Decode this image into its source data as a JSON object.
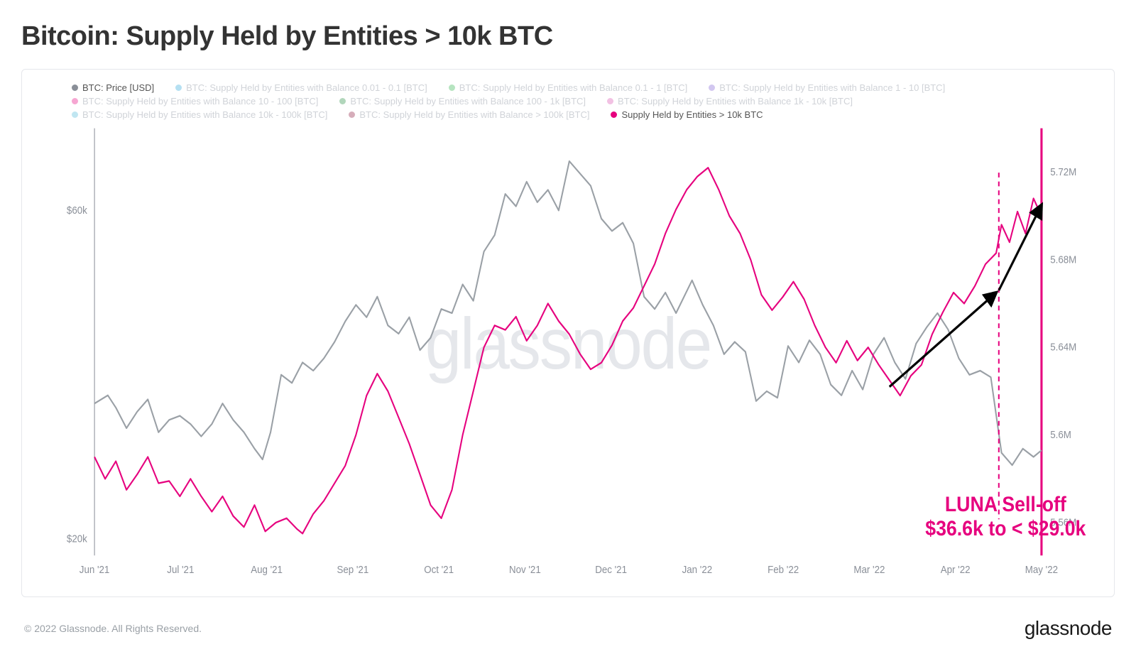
{
  "title": "Bitcoin: Supply Held by Entities > 10k BTC",
  "copyright": "© 2022 Glassnode. All Rights Reserved.",
  "brand": "glassnode",
  "watermark": "glassnode",
  "chart": {
    "type": "line-dual-axis",
    "background_color": "#ffffff",
    "grid_color": "#e5e7eb",
    "x": {
      "labels": [
        "Jun '21",
        "Jul '21",
        "Aug '21",
        "Sep '21",
        "Oct '21",
        "Nov '21",
        "Dec '21",
        "Jan '22",
        "Feb '22",
        "Mar '22",
        "Apr '22",
        "May '22"
      ],
      "range_days": 355
    },
    "y_left": {
      "label_color": "#8a8f98",
      "ticks": [
        {
          "v": 20000,
          "label": "$20k"
        },
        {
          "v": 60000,
          "label": "$60k"
        }
      ],
      "min": 18000,
      "max": 70000
    },
    "y_right": {
      "label_color": "#8a8f98",
      "ticks": [
        {
          "v": 5560000,
          "label": "5.56M"
        },
        {
          "v": 5600000,
          "label": "5.6M"
        },
        {
          "v": 5640000,
          "label": "5.64M"
        },
        {
          "v": 5680000,
          "label": "5.68M"
        },
        {
          "v": 5720000,
          "label": "5.72M"
        }
      ],
      "min": 5545000,
      "max": 5740000
    },
    "legend": [
      {
        "label": "BTC: Price [USD]",
        "color": "#8a8f98",
        "muted": false
      },
      {
        "label": "BTC: Supply Held by Entities with Balance 0.01 - 0.1 [BTC]",
        "color": "#2aa7d9",
        "muted": true
      },
      {
        "label": "BTC: Supply Held by Entities with Balance 0.1 - 1 [BTC]",
        "color": "#2fb34a",
        "muted": true
      },
      {
        "label": "BTC: Supply Held by Entities with Balance 1 - 10 [BTC]",
        "color": "#7d5fd3",
        "muted": true
      },
      {
        "label": "BTC: Supply Held by Entities with Balance 10 - 100 [BTC]",
        "color": "#e6007e",
        "muted": true
      },
      {
        "label": "BTC: Supply Held by Entities with Balance 100 - 1k [BTC]",
        "color": "#1f8a3b",
        "muted": true
      },
      {
        "label": "BTC: Supply Held by Entities with Balance 1k - 10k [BTC]",
        "color": "#d94db0",
        "muted": true
      },
      {
        "label": "BTC: Supply Held by Entities with Balance 10k - 100k [BTC]",
        "color": "#4bb7d8",
        "muted": true
      },
      {
        "label": "BTC: Supply Held by Entities with Balance > 100k [BTC]",
        "color": "#8a1538",
        "muted": true
      },
      {
        "label": "Supply Held by Entities > 10k BTC",
        "color": "#e6007e",
        "muted": false
      }
    ],
    "series_price": {
      "color": "#9aa0a6",
      "width": 2,
      "data": [
        [
          0,
          36500
        ],
        [
          5,
          37500
        ],
        [
          8,
          36000
        ],
        [
          12,
          33500
        ],
        [
          16,
          35500
        ],
        [
          20,
          37000
        ],
        [
          24,
          33000
        ],
        [
          28,
          34500
        ],
        [
          32,
          35000
        ],
        [
          36,
          34000
        ],
        [
          40,
          32500
        ],
        [
          44,
          34000
        ],
        [
          48,
          36500
        ],
        [
          52,
          34500
        ],
        [
          56,
          33000
        ],
        [
          60,
          31000
        ],
        [
          63,
          29700
        ],
        [
          66,
          33000
        ],
        [
          70,
          40000
        ],
        [
          74,
          39000
        ],
        [
          78,
          41500
        ],
        [
          82,
          40500
        ],
        [
          86,
          42000
        ],
        [
          90,
          44000
        ],
        [
          94,
          46500
        ],
        [
          98,
          48500
        ],
        [
          102,
          47000
        ],
        [
          106,
          49500
        ],
        [
          110,
          46000
        ],
        [
          114,
          45000
        ],
        [
          118,
          47000
        ],
        [
          122,
          43000
        ],
        [
          126,
          44500
        ],
        [
          130,
          48000
        ],
        [
          134,
          47500
        ],
        [
          138,
          51000
        ],
        [
          142,
          49000
        ],
        [
          146,
          55000
        ],
        [
          150,
          57000
        ],
        [
          154,
          62000
        ],
        [
          158,
          60500
        ],
        [
          162,
          63500
        ],
        [
          166,
          61000
        ],
        [
          170,
          62500
        ],
        [
          174,
          60000
        ],
        [
          178,
          66000
        ],
        [
          182,
          64500
        ],
        [
          186,
          63000
        ],
        [
          190,
          59000
        ],
        [
          194,
          57500
        ],
        [
          198,
          58500
        ],
        [
          202,
          56000
        ],
        [
          206,
          49500
        ],
        [
          210,
          48000
        ],
        [
          214,
          50000
        ],
        [
          218,
          47500
        ],
        [
          224,
          51500
        ],
        [
          228,
          48500
        ],
        [
          232,
          46000
        ],
        [
          236,
          42500
        ],
        [
          240,
          44000
        ],
        [
          244,
          42800
        ],
        [
          248,
          36800
        ],
        [
          252,
          38000
        ],
        [
          256,
          37200
        ],
        [
          260,
          43500
        ],
        [
          264,
          41500
        ],
        [
          268,
          44200
        ],
        [
          272,
          42500
        ],
        [
          276,
          38800
        ],
        [
          280,
          37500
        ],
        [
          284,
          40500
        ],
        [
          288,
          38200
        ],
        [
          292,
          42500
        ],
        [
          296,
          44500
        ],
        [
          300,
          41500
        ],
        [
          304,
          39500
        ],
        [
          308,
          43800
        ],
        [
          312,
          45800
        ],
        [
          316,
          47500
        ],
        [
          320,
          45500
        ],
        [
          324,
          42000
        ],
        [
          328,
          40000
        ],
        [
          332,
          40500
        ],
        [
          336,
          39700
        ],
        [
          340,
          30500
        ],
        [
          344,
          29000
        ],
        [
          348,
          31000
        ],
        [
          352,
          30000
        ],
        [
          355,
          30800
        ]
      ]
    },
    "series_supply": {
      "color": "#e6007e",
      "width": 2,
      "data": [
        [
          0,
          5590000
        ],
        [
          4,
          5580000
        ],
        [
          8,
          5588000
        ],
        [
          12,
          5575000
        ],
        [
          16,
          5582000
        ],
        [
          20,
          5590000
        ],
        [
          24,
          5578000
        ],
        [
          28,
          5579000
        ],
        [
          32,
          5572000
        ],
        [
          36,
          5580000
        ],
        [
          40,
          5572000
        ],
        [
          44,
          5565000
        ],
        [
          48,
          5572000
        ],
        [
          52,
          5563000
        ],
        [
          56,
          5558000
        ],
        [
          60,
          5568000
        ],
        [
          64,
          5556000
        ],
        [
          68,
          5560000
        ],
        [
          72,
          5562000
        ],
        [
          76,
          5557000
        ],
        [
          78,
          5555000
        ],
        [
          82,
          5564000
        ],
        [
          86,
          5570000
        ],
        [
          90,
          5578000
        ],
        [
          94,
          5586000
        ],
        [
          98,
          5600000
        ],
        [
          102,
          5618000
        ],
        [
          106,
          5628000
        ],
        [
          110,
          5620000
        ],
        [
          114,
          5608000
        ],
        [
          118,
          5596000
        ],
        [
          122,
          5582000
        ],
        [
          126,
          5568000
        ],
        [
          130,
          5562000
        ],
        [
          134,
          5575000
        ],
        [
          138,
          5600000
        ],
        [
          142,
          5620000
        ],
        [
          146,
          5640000
        ],
        [
          150,
          5650000
        ],
        [
          154,
          5648000
        ],
        [
          158,
          5654000
        ],
        [
          162,
          5643000
        ],
        [
          166,
          5650000
        ],
        [
          170,
          5660000
        ],
        [
          174,
          5652000
        ],
        [
          178,
          5646000
        ],
        [
          182,
          5637000
        ],
        [
          186,
          5630000
        ],
        [
          190,
          5633000
        ],
        [
          194,
          5641000
        ],
        [
          198,
          5652000
        ],
        [
          202,
          5658000
        ],
        [
          206,
          5668000
        ],
        [
          210,
          5678000
        ],
        [
          214,
          5692000
        ],
        [
          218,
          5703000
        ],
        [
          222,
          5712000
        ],
        [
          226,
          5718000
        ],
        [
          230,
          5722000
        ],
        [
          234,
          5712000
        ],
        [
          238,
          5700000
        ],
        [
          242,
          5692000
        ],
        [
          246,
          5680000
        ],
        [
          250,
          5664000
        ],
        [
          254,
          5657000
        ],
        [
          258,
          5663000
        ],
        [
          262,
          5670000
        ],
        [
          266,
          5662000
        ],
        [
          270,
          5650000
        ],
        [
          274,
          5640000
        ],
        [
          278,
          5633000
        ],
        [
          282,
          5643000
        ],
        [
          286,
          5634000
        ],
        [
          290,
          5640000
        ],
        [
          294,
          5632000
        ],
        [
          298,
          5625000
        ],
        [
          302,
          5618000
        ],
        [
          306,
          5627000
        ],
        [
          310,
          5632000
        ],
        [
          314,
          5646000
        ],
        [
          318,
          5656000
        ],
        [
          322,
          5665000
        ],
        [
          326,
          5660000
        ],
        [
          330,
          5668000
        ],
        [
          334,
          5678000
        ],
        [
          338,
          5683000
        ],
        [
          340,
          5696000
        ],
        [
          343,
          5688000
        ],
        [
          346,
          5702000
        ],
        [
          349,
          5692000
        ],
        [
          352,
          5708000
        ],
        [
          355,
          5700000
        ]
      ]
    },
    "annotation": {
      "vline_day": 339,
      "vline_color": "#e6007e",
      "text1": "LUNA Sell-off",
      "text2": "$36.6k to < $29.0k",
      "text_color": "#e6007e",
      "arrows": [
        {
          "from_day": 298,
          "from_val": 5622000,
          "to_day": 338,
          "to_val": 5665000
        },
        {
          "from_day": 339,
          "from_val": 5666000,
          "to_day": 355,
          "to_val": 5705000
        }
      ]
    }
  }
}
